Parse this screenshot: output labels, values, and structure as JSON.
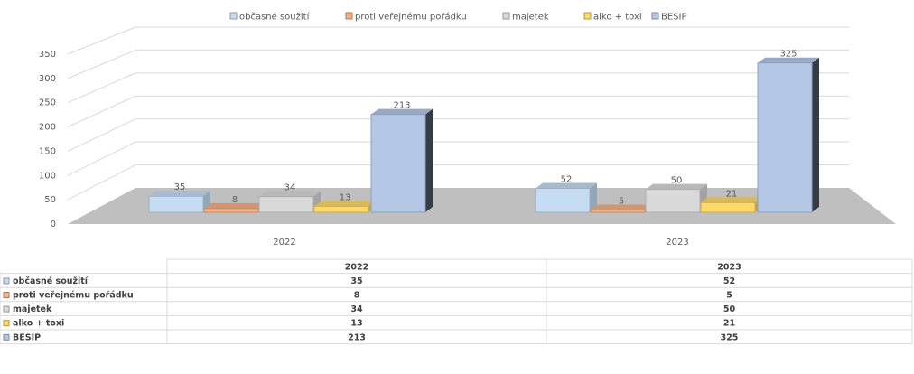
{
  "chart_data": {
    "type": "bar3d",
    "categories": [
      "2022",
      "2023"
    ],
    "series": [
      {
        "name": "občasné soužití",
        "color": "#c5dcf2",
        "values": [
          35,
          52
        ]
      },
      {
        "name": "proti veřejnému pořádku",
        "color": "#f4b183",
        "values": [
          8,
          5
        ]
      },
      {
        "name": "majetek",
        "color": "#d9d9d9",
        "values": [
          34,
          50
        ]
      },
      {
        "name": "alko + toxi",
        "color": "#ffd966",
        "values": [
          13,
          21
        ]
      },
      {
        "name": "BESIP",
        "color": "#b4c7e7",
        "values": [
          213,
          325
        ]
      }
    ],
    "ylim": [
      0,
      350
    ],
    "yticks": [
      0,
      50,
      100,
      150,
      200,
      250,
      300,
      350
    ],
    "grid": true,
    "legend": "top",
    "data_table": true
  }
}
